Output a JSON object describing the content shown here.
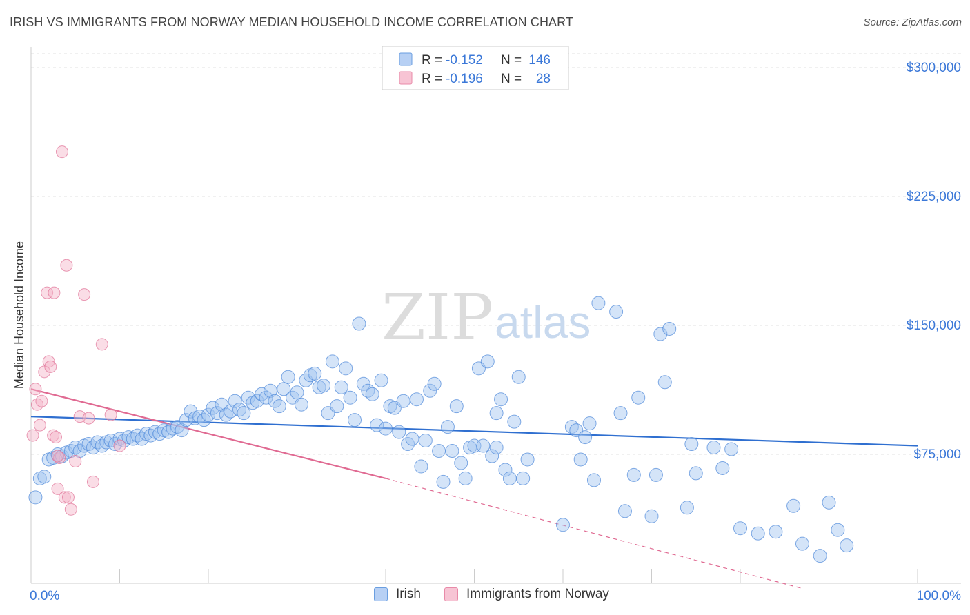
{
  "title": "IRISH VS IMMIGRANTS FROM NORWAY MEDIAN HOUSEHOLD INCOME CORRELATION CHART",
  "source": "Source: ZipAtlas.com",
  "watermark": {
    "zip": "ZIP",
    "atlas": "atlas"
  },
  "legend_top": [
    {
      "series": "Irish",
      "r_label": "R =",
      "r_value": "-0.152",
      "n_label": "N =",
      "n_value": "146",
      "color": "#6a9ee0",
      "fill": "#b7d0f4"
    },
    {
      "series": "Immigrants from Norway",
      "r_label": "R =",
      "r_value": "-0.196",
      "n_label": "N =",
      "n_value": "28",
      "color": "#e88aa8",
      "fill": "#f7c4d4"
    }
  ],
  "legend_bottom": [
    {
      "label": "Irish",
      "color": "#6a9ee0",
      "fill": "#b7d0f4"
    },
    {
      "label": "Immigrants from Norway",
      "color": "#e88aa8",
      "fill": "#f7c4d4"
    }
  ],
  "chart_data": {
    "type": "scatter",
    "title": "IRISH VS IMMIGRANTS FROM NORWAY MEDIAN HOUSEHOLD INCOME CORRELATION CHART",
    "xlabel": "",
    "ylabel": "Median Household Income",
    "xlim": [
      0,
      100
    ],
    "ylim": [
      0,
      310000
    ],
    "x_tick_labels": {
      "0": "0.0%",
      "100": "100.0%"
    },
    "y_ticks": [
      75000,
      150000,
      225000,
      300000
    ],
    "y_tick_labels": [
      "$75,000",
      "$150,000",
      "$225,000",
      "$300,000"
    ],
    "grid": true,
    "series": [
      {
        "name": "Irish",
        "color": "#4a86d8",
        "fill": "rgba(160,196,240,0.45)",
        "trend": {
          "x": [
            0,
            100
          ],
          "y": [
            97000,
            80000
          ],
          "color": "#2f6fd0"
        },
        "points": [
          [
            0.5,
            50000
          ],
          [
            1.0,
            61000
          ],
          [
            1.5,
            62000
          ],
          [
            2.0,
            72000
          ],
          [
            2.5,
            73000
          ],
          [
            3.0,
            75000
          ],
          [
            3.5,
            74000
          ],
          [
            4.0,
            76000
          ],
          [
            4.5,
            77000
          ],
          [
            5.0,
            79000
          ],
          [
            5.5,
            77000
          ],
          [
            6.0,
            80000
          ],
          [
            6.5,
            81000
          ],
          [
            7.0,
            79000
          ],
          [
            7.5,
            82000
          ],
          [
            8.0,
            80000
          ],
          [
            8.5,
            82000
          ],
          [
            9.0,
            83000
          ],
          [
            9.5,
            81000
          ],
          [
            10.0,
            84000
          ],
          [
            10.5,
            83000
          ],
          [
            11.0,
            85000
          ],
          [
            11.5,
            84000
          ],
          [
            12.0,
            86000
          ],
          [
            12.5,
            84000
          ],
          [
            13.0,
            87000
          ],
          [
            13.5,
            86000
          ],
          [
            14.0,
            88000
          ],
          [
            14.5,
            87000
          ],
          [
            15.0,
            89000
          ],
          [
            15.5,
            88000
          ],
          [
            16.0,
            90000
          ],
          [
            16.5,
            91000
          ],
          [
            17.0,
            89000
          ],
          [
            17.5,
            95000
          ],
          [
            18.0,
            100000
          ],
          [
            18.5,
            96000
          ],
          [
            19.0,
            97000
          ],
          [
            19.5,
            95000
          ],
          [
            20.0,
            98000
          ],
          [
            20.5,
            102000
          ],
          [
            21.0,
            99000
          ],
          [
            21.5,
            104000
          ],
          [
            22.0,
            98000
          ],
          [
            22.5,
            100000
          ],
          [
            23.0,
            106000
          ],
          [
            23.5,
            101000
          ],
          [
            24.0,
            99000
          ],
          [
            24.5,
            108000
          ],
          [
            25.0,
            105000
          ],
          [
            25.5,
            106000
          ],
          [
            26.0,
            110000
          ],
          [
            26.5,
            108000
          ],
          [
            27.0,
            112000
          ],
          [
            27.5,
            106000
          ],
          [
            28.0,
            103000
          ],
          [
            28.5,
            113000
          ],
          [
            29.0,
            120000
          ],
          [
            29.5,
            108000
          ],
          [
            30.0,
            111000
          ],
          [
            30.5,
            104000
          ],
          [
            31.0,
            118000
          ],
          [
            31.5,
            121000
          ],
          [
            32.0,
            122000
          ],
          [
            32.5,
            114000
          ],
          [
            33.0,
            115000
          ],
          [
            33.5,
            99000
          ],
          [
            34.0,
            129000
          ],
          [
            34.5,
            103000
          ],
          [
            35.0,
            114000
          ],
          [
            35.5,
            125000
          ],
          [
            36.0,
            108000
          ],
          [
            36.5,
            95000
          ],
          [
            37.0,
            151000
          ],
          [
            37.5,
            116000
          ],
          [
            38.0,
            112000
          ],
          [
            38.5,
            110000
          ],
          [
            39.0,
            92000
          ],
          [
            39.5,
            118000
          ],
          [
            40.0,
            90000
          ],
          [
            40.5,
            103000
          ],
          [
            41.0,
            102000
          ],
          [
            41.5,
            88000
          ],
          [
            42.0,
            106000
          ],
          [
            42.5,
            81000
          ],
          [
            43.0,
            84000
          ],
          [
            43.5,
            107000
          ],
          [
            44.0,
            68000
          ],
          [
            44.5,
            83000
          ],
          [
            45.0,
            112000
          ],
          [
            45.5,
            116000
          ],
          [
            46.0,
            77000
          ],
          [
            46.5,
            59000
          ],
          [
            47.0,
            91000
          ],
          [
            47.5,
            77000
          ],
          [
            48.0,
            103000
          ],
          [
            48.5,
            70000
          ],
          [
            49.0,
            61000
          ],
          [
            49.5,
            79000
          ],
          [
            50.0,
            80000
          ],
          [
            50.5,
            125000
          ],
          [
            51.0,
            80000
          ],
          [
            51.5,
            129000
          ],
          [
            52.0,
            74000
          ],
          [
            52.5,
            99000
          ],
          [
            53.0,
            107000
          ],
          [
            53.5,
            66000
          ],
          [
            54.0,
            61000
          ],
          [
            54.5,
            94000
          ],
          [
            55.0,
            120000
          ],
          [
            55.5,
            61000
          ],
          [
            56.0,
            72000
          ],
          [
            60.0,
            34000
          ],
          [
            61.0,
            91000
          ],
          [
            61.5,
            89000
          ],
          [
            62.0,
            72000
          ],
          [
            62.5,
            85000
          ],
          [
            63.0,
            93000
          ],
          [
            63.5,
            60000
          ],
          [
            64.0,
            163000
          ],
          [
            66.0,
            158000
          ],
          [
            66.5,
            99000
          ],
          [
            67.0,
            42000
          ],
          [
            68.0,
            63000
          ],
          [
            68.5,
            108000
          ],
          [
            70.0,
            39000
          ],
          [
            70.5,
            63000
          ],
          [
            71.0,
            145000
          ],
          [
            71.5,
            117000
          ],
          [
            72.0,
            148000
          ],
          [
            74.0,
            44000
          ],
          [
            74.5,
            81000
          ],
          [
            75.0,
            64000
          ],
          [
            77.0,
            79000
          ],
          [
            78.0,
            67000
          ],
          [
            79.0,
            78000
          ],
          [
            80.0,
            32000
          ],
          [
            82.0,
            29000
          ],
          [
            84.0,
            30000
          ],
          [
            86.0,
            45000
          ],
          [
            87.0,
            23000
          ],
          [
            89.0,
            16000
          ],
          [
            90.0,
            47000
          ],
          [
            91.0,
            31000
          ],
          [
            92.0,
            22000
          ],
          [
            52.5,
            79000
          ]
        ]
      },
      {
        "name": "Immigrants from Norway",
        "color": "#e07095",
        "fill": "rgba(245,180,200,0.45)",
        "trend": {
          "x": [
            0,
            40
          ],
          "y": [
            113000,
            61000
          ],
          "color": "#e06a92",
          "dashed_to": {
            "x": 87,
            "y": -3000
          }
        },
        "points": [
          [
            0.2,
            86000
          ],
          [
            0.5,
            113000
          ],
          [
            0.7,
            104000
          ],
          [
            1.0,
            92000
          ],
          [
            1.2,
            106000
          ],
          [
            1.5,
            123000
          ],
          [
            1.8,
            169000
          ],
          [
            2.0,
            129000
          ],
          [
            2.2,
            126000
          ],
          [
            2.5,
            86000
          ],
          [
            2.8,
            85000
          ],
          [
            3.0,
            55000
          ],
          [
            3.2,
            73000
          ],
          [
            3.5,
            251000
          ],
          [
            3.8,
            50000
          ],
          [
            4.0,
            185000
          ],
          [
            4.2,
            50000
          ],
          [
            4.5,
            43000
          ],
          [
            5.0,
            71000
          ],
          [
            5.5,
            97000
          ],
          [
            6.0,
            168000
          ],
          [
            6.5,
            96000
          ],
          [
            7.0,
            59000
          ],
          [
            8.0,
            139000
          ],
          [
            9.0,
            98000
          ],
          [
            2.6,
            169000
          ],
          [
            3.0,
            74000
          ],
          [
            10.0,
            80000
          ]
        ]
      }
    ]
  }
}
